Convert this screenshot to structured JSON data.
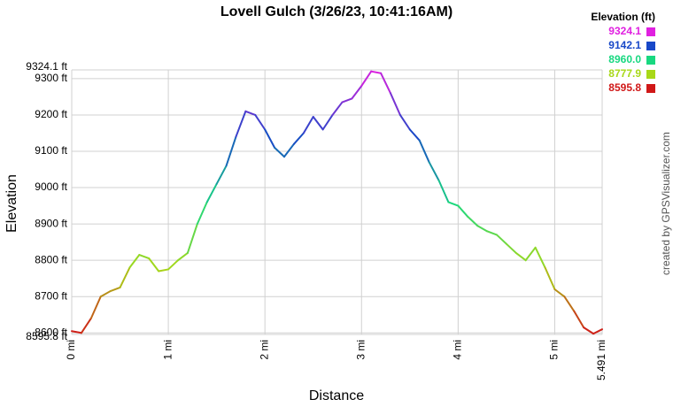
{
  "chart_data": {
    "type": "line",
    "title": "Lovell Gulch (3/26/23, 10:41:16AM)",
    "x_label": "Distance",
    "y_label": "Elevation",
    "credit": "created by GPSVisualizer.com",
    "legend_title": "Elevation (ft)",
    "color_scale": [
      {
        "value": 9324.1,
        "label": "9324.1",
        "color": "#e020e0"
      },
      {
        "value": 9142.1,
        "label": "9142.1",
        "color": "#1848c8"
      },
      {
        "value": 8960.0,
        "label": "8960.0",
        "color": "#18d880"
      },
      {
        "value": 8777.9,
        "label": "8777.9",
        "color": "#a8d818"
      },
      {
        "value": 8595.8,
        "label": "8595.8",
        "color": "#d01818"
      }
    ],
    "grid": true,
    "xlim": [
      0,
      5.491
    ],
    "ylim": [
      8595.8,
      9324.1
    ],
    "xticks": [
      {
        "value": 0,
        "label": "0 mi"
      },
      {
        "value": 1,
        "label": "1 mi"
      },
      {
        "value": 2,
        "label": "2 mi"
      },
      {
        "value": 3,
        "label": "3 mi"
      },
      {
        "value": 4,
        "label": "4 mi"
      },
      {
        "value": 5,
        "label": "5 mi"
      },
      {
        "value": 5.491,
        "label": "5.491 mi"
      }
    ],
    "yticks": [
      {
        "value": 8595.8,
        "label": "8595.8 ft"
      },
      {
        "value": 8600,
        "label": "8600 ft"
      },
      {
        "value": 8700,
        "label": "8700 ft"
      },
      {
        "value": 8800,
        "label": "8800 ft"
      },
      {
        "value": 8900,
        "label": "8900 ft"
      },
      {
        "value": 9000,
        "label": "9000 ft"
      },
      {
        "value": 9100,
        "label": "9100 ft"
      },
      {
        "value": 9200,
        "label": "9200 ft"
      },
      {
        "value": 9300,
        "label": "9300 ft"
      },
      {
        "value": 9324.1,
        "label": "9324.1 ft"
      }
    ],
    "x": [
      0,
      0.1,
      0.2,
      0.3,
      0.4,
      0.5,
      0.6,
      0.7,
      0.8,
      0.9,
      1.0,
      1.1,
      1.2,
      1.3,
      1.4,
      1.5,
      1.6,
      1.7,
      1.8,
      1.9,
      2.0,
      2.1,
      2.2,
      2.3,
      2.4,
      2.5,
      2.6,
      2.7,
      2.8,
      2.9,
      3.0,
      3.1,
      3.2,
      3.3,
      3.4,
      3.5,
      3.6,
      3.7,
      3.8,
      3.9,
      4.0,
      4.1,
      4.2,
      4.3,
      4.4,
      4.5,
      4.6,
      4.7,
      4.8,
      4.9,
      5.0,
      5.1,
      5.2,
      5.3,
      5.4,
      5.491
    ],
    "values": [
      8605,
      8600,
      8640,
      8700,
      8715,
      8725,
      8780,
      8815,
      8805,
      8770,
      8775,
      8800,
      8820,
      8900,
      8960,
      9010,
      9060,
      9140,
      9210,
      9200,
      9160,
      9110,
      9085,
      9120,
      9150,
      9195,
      9160,
      9200,
      9235,
      9245,
      9280,
      9320,
      9315,
      9260,
      9200,
      9160,
      9130,
      9070,
      9020,
      8960,
      8950,
      8920,
      8895,
      8880,
      8870,
      8845,
      8820,
      8800,
      8835,
      8780,
      8720,
      8700,
      8660,
      8615,
      8598,
      8610
    ]
  }
}
